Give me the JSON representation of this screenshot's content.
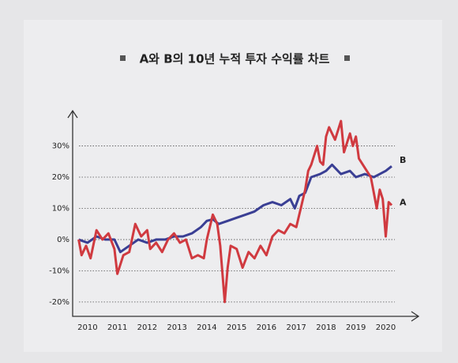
{
  "chart_data": {
    "type": "line",
    "title": "A와 B의 10년 누적 투자 수익률 차트",
    "xlim": [
      2009.5,
      2021.1
    ],
    "xticks": [
      2010,
      2011,
      2012,
      2013,
      2014,
      2015,
      2016,
      2017,
      2018,
      2019,
      2020
    ],
    "ylim": [
      -24.6,
      41.3
    ],
    "yticks": [
      {
        "value": -20,
        "label": "-20%"
      },
      {
        "value": -10,
        "label": "-10%"
      },
      {
        "value": 0,
        "label": "0%"
      },
      {
        "value": 10,
        "label": "10%"
      },
      {
        "value": 20,
        "label": "20%"
      },
      {
        "value": 30,
        "label": "30%"
      }
    ],
    "grid": true,
    "series": [
      {
        "name": "B",
        "color": "#3a3f94",
        "x": [
          2009.7,
          2010.0,
          2010.3,
          2010.6,
          2010.9,
          2011.1,
          2011.4,
          2011.7,
          2012.0,
          2012.3,
          2012.6,
          2012.9,
          2013.2,
          2013.5,
          2013.8,
          2014.0,
          2014.2,
          2014.4,
          2014.7,
          2015.0,
          2015.3,
          2015.6,
          2015.9,
          2016.2,
          2016.5,
          2016.8,
          2016.95,
          2017.1,
          2017.3,
          2017.5,
          2017.8,
          2018.0,
          2018.2,
          2018.5,
          2018.8,
          2019.0,
          2019.3,
          2019.6,
          2019.8,
          2020.0,
          2020.2
        ],
        "values": [
          0,
          -1,
          1,
          0,
          0,
          -4,
          -2,
          0,
          -1,
          0,
          0,
          1,
          1,
          2,
          4,
          6,
          6.5,
          5,
          6,
          7,
          8,
          9,
          11,
          12,
          11,
          13,
          10,
          14,
          15,
          20,
          21,
          22,
          24,
          21,
          22,
          20,
          21,
          20,
          21,
          22,
          23.5
        ]
      },
      {
        "name": "A",
        "color": "#d03a40",
        "x": [
          2009.7,
          2009.8,
          2009.95,
          2010.1,
          2010.3,
          2010.5,
          2010.7,
          2010.9,
          2011.0,
          2011.2,
          2011.4,
          2011.6,
          2011.8,
          2012.0,
          2012.1,
          2012.3,
          2012.5,
          2012.7,
          2012.9,
          2013.1,
          2013.3,
          2013.5,
          2013.7,
          2013.9,
          2014.0,
          2014.2,
          2014.35,
          2014.45,
          2014.6,
          2014.7,
          2014.8,
          2015.0,
          2015.2,
          2015.4,
          2015.6,
          2015.8,
          2016.0,
          2016.2,
          2016.4,
          2016.6,
          2016.8,
          2017.0,
          2017.1,
          2017.3,
          2017.4,
          2017.5,
          2017.7,
          2017.8,
          2017.9,
          2018.0,
          2018.1,
          2018.3,
          2018.5,
          2018.6,
          2018.8,
          2018.9,
          2019.0,
          2019.1,
          2019.3,
          2019.5,
          2019.6,
          2019.7,
          2019.8,
          2019.9,
          2020.0,
          2020.1,
          2020.2
        ],
        "values": [
          0,
          -5,
          -2,
          -6,
          3,
          0,
          2,
          -3,
          -11,
          -5,
          -4,
          5,
          1,
          3,
          -3,
          -1,
          -4,
          0,
          2,
          -1,
          0,
          -6,
          -5,
          -6,
          0,
          8,
          5,
          -2,
          -20,
          -9,
          -2,
          -3,
          -9,
          -4,
          -6,
          -2,
          -5,
          1,
          3,
          2,
          5,
          4,
          8,
          16,
          22,
          24,
          30,
          25,
          24,
          33,
          36,
          32,
          38,
          28,
          34,
          30,
          33,
          26,
          23,
          20,
          15,
          10,
          16,
          13,
          1,
          12,
          11
        ]
      }
    ]
  }
}
